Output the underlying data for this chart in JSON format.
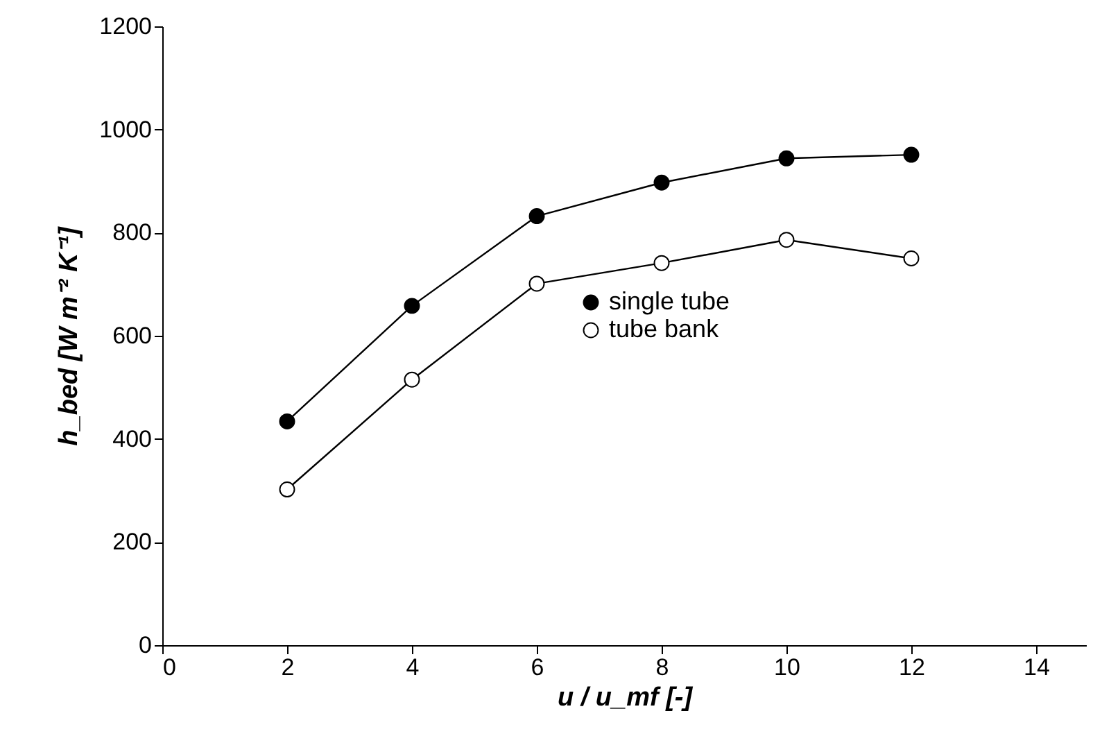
{
  "chart_data": {
    "type": "line",
    "xlabel": "u / u_mf [-]",
    "ylabel": "h_bed [W m⁻² K⁻¹]",
    "x": [
      2,
      4,
      6,
      8,
      10,
      12
    ],
    "series": [
      {
        "name": "single tube",
        "color": "#000000",
        "values": [
          434,
          658,
          832,
          897,
          944,
          951
        ]
      },
      {
        "name": "tube bank",
        "color": "#ffffff",
        "values": [
          302,
          515,
          701,
          741,
          786,
          750
        ]
      }
    ],
    "xlim": [
      0,
      14.8
    ],
    "xticks": [
      0,
      2,
      4,
      6,
      8,
      10,
      12,
      14
    ],
    "ylim": [
      0,
      1200
    ],
    "yticks": [
      0,
      200,
      400,
      600,
      800,
      1000,
      1200
    ],
    "marker": "circle",
    "line_style": "solid",
    "grid": false,
    "legend": "center"
  }
}
